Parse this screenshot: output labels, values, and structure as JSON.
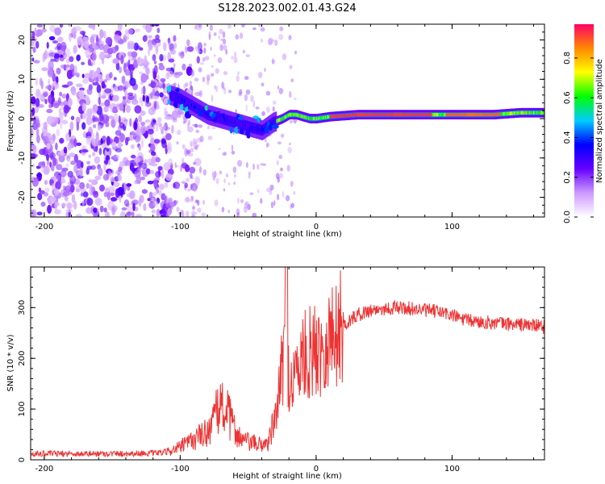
{
  "figure": {
    "title": "S128.2023.002.01.43.G24"
  },
  "chart_data": [
    {
      "type": "heatmap",
      "xlabel": "Height of straight line (km)",
      "ylabel": "Frequency (Hz)",
      "xlim": [
        -210,
        168
      ],
      "ylim": [
        -25,
        24
      ],
      "xticks": [
        -200,
        -100,
        0,
        100
      ],
      "yticks": [
        -20,
        -10,
        0,
        10,
        20
      ],
      "colorbar": {
        "label": "Normalized spectral amplitude",
        "range": [
          0,
          0.97
        ],
        "ticks": [
          "0.0",
          "0.2",
          "0.4",
          "0.6",
          "0.8"
        ],
        "colormap": [
          "#ffffff",
          "#cc99ff",
          "#6600ff",
          "#0000ff",
          "#00ccff",
          "#00ff00",
          "#ffff00",
          "#ff8800",
          "#ff0066"
        ]
      },
      "ridge": {
        "description_points_x": [
          -108,
          -100,
          -90,
          -80,
          -70,
          -60,
          -50,
          -40,
          -32,
          -25,
          -20,
          -15,
          -10,
          -5,
          0,
          10,
          30,
          60,
          80,
          95,
          110,
          130,
          150,
          168
        ],
        "frequency_hz": [
          6,
          5,
          3,
          1,
          0,
          -1,
          -2,
          -3,
          -1,
          0,
          1,
          1,
          0.5,
          0,
          0,
          0.5,
          1,
          1,
          1,
          1,
          1,
          1,
          1.5,
          1.5
        ]
      },
      "noise_region_x": [
        -210,
        -105
      ]
    },
    {
      "type": "line",
      "xlabel": "Height of straight line (km)",
      "ylabel": "SNR (10 * v/v)",
      "xlim": [
        -210,
        168
      ],
      "ylim": [
        0,
        380
      ],
      "xticks": [
        -200,
        -100,
        0,
        100
      ],
      "yticks": [
        0,
        100,
        200,
        300
      ],
      "series": [
        {
          "color": "#ee3333",
          "x": [
            -210,
            -180,
            -150,
            -120,
            -110,
            -100,
            -90,
            -80,
            -75,
            -70,
            -65,
            -60,
            -55,
            -50,
            -45,
            -40,
            -35,
            -30,
            -25,
            -22,
            -20,
            -15,
            -10,
            -5,
            0,
            10,
            20,
            30,
            40,
            50,
            60,
            70,
            80,
            90,
            100,
            110,
            120,
            140,
            160,
            168
          ],
          "y": [
            12,
            12,
            12,
            13,
            15,
            25,
            40,
            55,
            80,
            110,
            90,
            60,
            40,
            35,
            32,
            30,
            35,
            80,
            180,
            260,
            150,
            170,
            200,
            210,
            215,
            240,
            265,
            285,
            295,
            298,
            300,
            298,
            295,
            292,
            285,
            275,
            272,
            268,
            265,
            262
          ]
        }
      ]
    }
  ]
}
